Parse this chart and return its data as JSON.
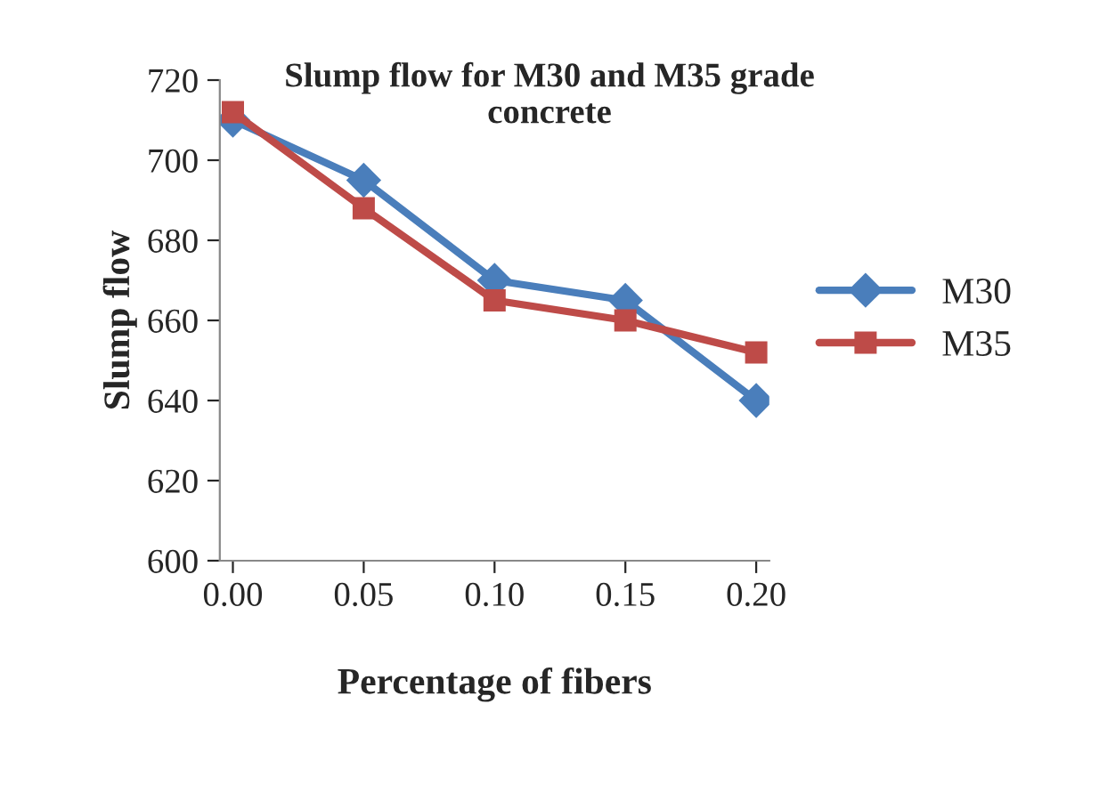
{
  "chart_data": {
    "type": "line",
    "title": "Slump flow for M30 and M35 grade\nconcrete",
    "xlabel": "Percentage of fibers",
    "ylabel": "Slump flow",
    "categories": [
      "0.00",
      "0.05",
      "0.10",
      "0.15",
      "0.20"
    ],
    "series": [
      {
        "name": "M30",
        "color": "#4a7ebb",
        "marker": "diamond",
        "values": [
          710,
          695,
          670,
          665,
          640
        ]
      },
      {
        "name": "M35",
        "color": "#be4b48",
        "marker": "square",
        "values": [
          712,
          688,
          665,
          660,
          652
        ]
      }
    ],
    "ylim": [
      600,
      720
    ],
    "yticks": [
      600,
      620,
      640,
      660,
      680,
      700,
      720
    ],
    "grid": false,
    "legend": "right"
  }
}
